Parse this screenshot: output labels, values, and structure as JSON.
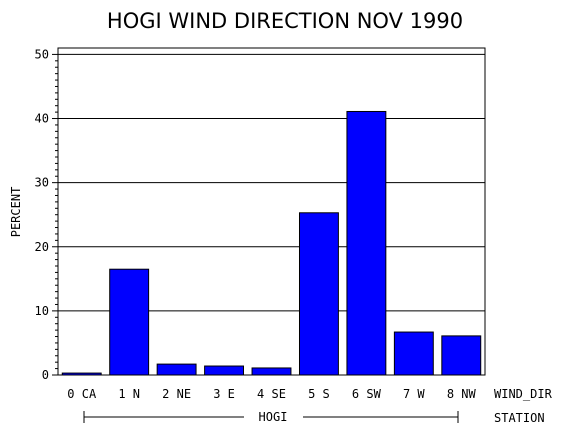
{
  "chart_data": {
    "type": "bar",
    "title": "HOGI WIND DIRECTION NOV 1990",
    "ylabel": "PERCENT",
    "xlabel": "WIND_DIR",
    "group_axis_label": "STATION",
    "group_label": "HOGI",
    "categories": [
      "0 CA",
      "1 N",
      "2 NE",
      "3 E",
      "4 SE",
      "5 S",
      "6 SW",
      "7 W",
      "8 NW"
    ],
    "values": [
      0.3,
      16.5,
      1.7,
      1.4,
      1.1,
      25.3,
      41.1,
      6.7,
      6.1
    ],
    "ylim": [
      0,
      51
    ],
    "yticks": [
      0,
      10,
      20,
      30,
      40,
      50
    ],
    "bar_color": "#0000ff",
    "grid": true
  }
}
